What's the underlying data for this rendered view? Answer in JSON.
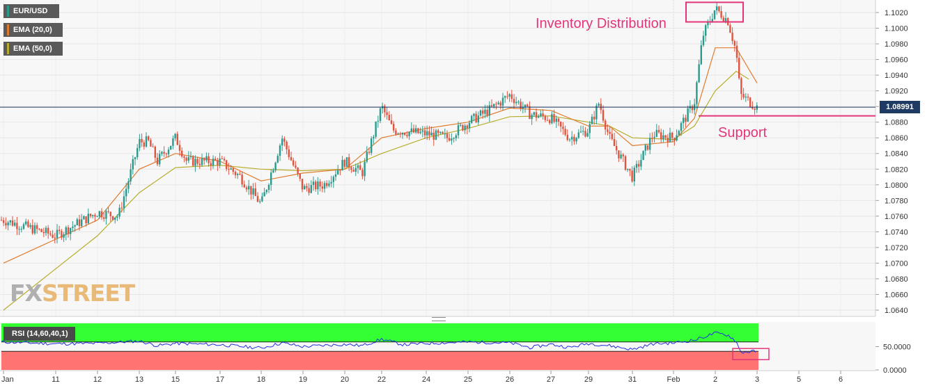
{
  "legend": {
    "pair": "EUR/USD",
    "ema20": "EMA (20,0)",
    "ema50": "EMA (50,0)"
  },
  "annotations": {
    "distribution": "Inventory Distribution",
    "support": "Support"
  },
  "watermark": {
    "fx": "FX",
    "street": "STREET"
  },
  "last_price": "1.08991",
  "rsi_label": "RSI (14,60,40,1)",
  "colors": {
    "up": "#2b9a8c",
    "down": "#e0533f",
    "ema20": "#e07b2e",
    "ema50": "#b8ad2c",
    "rsi_line": "#1f2fdc",
    "rsi_upper_zone": "#33ff33",
    "rsi_lower_zone": "#ff7373",
    "annotation": "#e5357a",
    "price_line": "#1f3a63"
  },
  "chart_data": [
    {
      "type": "candlestick",
      "title": "EUR/USD",
      "y_ticks": [
        "1.1020",
        "1.1000",
        "1.0980",
        "1.0960",
        "1.0940",
        "1.0920",
        "1.0900",
        "1.0880",
        "1.0860",
        "1.0840",
        "1.0820",
        "1.0800",
        "1.0780",
        "1.0760",
        "1.0740",
        "1.0720",
        "1.0700",
        "1.0680",
        "1.0660",
        "1.0640"
      ],
      "ylim": [
        1.063,
        1.1035
      ],
      "x_ticks": [
        "Jan",
        "11",
        "12",
        "13",
        "15",
        "17",
        "18",
        "19",
        "20",
        "22",
        "24",
        "25",
        "26",
        "27",
        "29",
        "31",
        "Feb",
        "2",
        "3",
        "5",
        "6"
      ],
      "last_price": 1.08991,
      "support_level": 1.0888,
      "distribution_zone": {
        "from": "2",
        "high": 1.1033,
        "low": 1.1008
      },
      "close_path": [
        {
          "x": "Jan",
          "y": 1.0755
        },
        {
          "x": "11",
          "y": 1.0735
        },
        {
          "x": "12",
          "y": 1.0765
        },
        {
          "x": "12.5",
          "y": 1.076
        },
        {
          "x": "13",
          "y": 1.0855
        },
        {
          "x": "13.5",
          "y": 1.0855
        },
        {
          "x": "14",
          "y": 1.083
        },
        {
          "x": "15",
          "y": 1.086
        },
        {
          "x": "15.5",
          "y": 1.083
        },
        {
          "x": "17",
          "y": 1.083
        },
        {
          "x": "17.5",
          "y": 1.081
        },
        {
          "x": "18",
          "y": 1.0775
        },
        {
          "x": "18.5",
          "y": 1.086
        },
        {
          "x": "19",
          "y": 1.0795
        },
        {
          "x": "19.5",
          "y": 1.08
        },
        {
          "x": "20",
          "y": 1.083
        },
        {
          "x": "21",
          "y": 1.0815
        },
        {
          "x": "22",
          "y": 1.09
        },
        {
          "x": "22.5",
          "y": 1.087
        },
        {
          "x": "24",
          "y": 1.0865
        },
        {
          "x": "24.5",
          "y": 1.086
        },
        {
          "x": "25",
          "y": 1.088
        },
        {
          "x": "25.5",
          "y": 1.0895
        },
        {
          "x": "26",
          "y": 1.0915
        },
        {
          "x": "26.5",
          "y": 1.089
        },
        {
          "x": "27",
          "y": 1.0885
        },
        {
          "x": "28",
          "y": 1.086
        },
        {
          "x": "29",
          "y": 1.087
        },
        {
          "x": "29.5",
          "y": 1.0905
        },
        {
          "x": "30",
          "y": 1.086
        },
        {
          "x": "31",
          "y": 1.081
        },
        {
          "x": "31.5",
          "y": 1.0865
        },
        {
          "x": "Feb",
          "y": 1.086
        },
        {
          "x": "1.5",
          "y": 1.0905
        },
        {
          "x": "1.7",
          "y": 1.099
        },
        {
          "x": "2",
          "y": 1.1025
        },
        {
          "x": "2.3",
          "y": 1.101
        },
        {
          "x": "2.5",
          "y": 1.097
        },
        {
          "x": "2.6",
          "y": 1.0915
        },
        {
          "x": "3",
          "y": 1.0899
        }
      ],
      "series": [
        {
          "name": "EMA (20,0)",
          "values": [
            {
              "x": "Jan",
              "y": 1.07
            },
            {
              "x": "12",
              "y": 1.0755
            },
            {
              "x": "13",
              "y": 1.082
            },
            {
              "x": "15",
              "y": 1.084
            },
            {
              "x": "17",
              "y": 1.083
            },
            {
              "x": "18",
              "y": 1.0805
            },
            {
              "x": "19",
              "y": 1.0815
            },
            {
              "x": "20",
              "y": 1.082
            },
            {
              "x": "22",
              "y": 1.086
            },
            {
              "x": "24",
              "y": 1.0872
            },
            {
              "x": "25",
              "y": 1.088
            },
            {
              "x": "26",
              "y": 1.0898
            },
            {
              "x": "27",
              "y": 1.0895
            },
            {
              "x": "29",
              "y": 1.0875
            },
            {
              "x": "30",
              "y": 1.0875
            },
            {
              "x": "31",
              "y": 1.085
            },
            {
              "x": "Feb",
              "y": 1.0855
            },
            {
              "x": "1.5",
              "y": 1.0885
            },
            {
              "x": "2",
              "y": 1.0975
            },
            {
              "x": "2.5",
              "y": 1.0975
            },
            {
              "x": "3",
              "y": 1.093
            }
          ]
        },
        {
          "name": "EMA (50,0)",
          "values": [
            {
              "x": "Jan",
              "y": 1.064
            },
            {
              "x": "12",
              "y": 1.0735
            },
            {
              "x": "13",
              "y": 1.079
            },
            {
              "x": "15",
              "y": 1.0822
            },
            {
              "x": "17",
              "y": 1.0825
            },
            {
              "x": "18",
              "y": 1.082
            },
            {
              "x": "19",
              "y": 1.0818
            },
            {
              "x": "20",
              "y": 1.082
            },
            {
              "x": "22",
              "y": 1.084
            },
            {
              "x": "24",
              "y": 1.086
            },
            {
              "x": "25",
              "y": 1.0872
            },
            {
              "x": "26",
              "y": 1.0887
            },
            {
              "x": "27",
              "y": 1.0888
            },
            {
              "x": "29",
              "y": 1.088
            },
            {
              "x": "30",
              "y": 1.0875
            },
            {
              "x": "31",
              "y": 1.086
            },
            {
              "x": "Feb",
              "y": 1.0858
            },
            {
              "x": "1.5",
              "y": 1.0875
            },
            {
              "x": "2",
              "y": 1.092
            },
            {
              "x": "2.5",
              "y": 1.0945
            },
            {
              "x": "2.8",
              "y": 1.0935
            }
          ]
        }
      ]
    },
    {
      "type": "line",
      "title": "RSI (14,60,40,1)",
      "y_ticks": [
        "50.0000",
        "0.0000"
      ],
      "ylim": [
        0,
        100
      ],
      "upper_band": 60,
      "lower_band": 40,
      "series": [
        {
          "name": "RSI (14,60,40,1)",
          "values": [
            {
              "x": "Jan",
              "y": 60
            },
            {
              "x": "11",
              "y": 56
            },
            {
              "x": "12",
              "y": 57
            },
            {
              "x": "13",
              "y": 62
            },
            {
              "x": "14",
              "y": 52
            },
            {
              "x": "15",
              "y": 57
            },
            {
              "x": "17",
              "y": 54
            },
            {
              "x": "18",
              "y": 47
            },
            {
              "x": "18.5",
              "y": 58
            },
            {
              "x": "19",
              "y": 50
            },
            {
              "x": "20",
              "y": 55
            },
            {
              "x": "21",
              "y": 52
            },
            {
              "x": "22",
              "y": 66
            },
            {
              "x": "23",
              "y": 54
            },
            {
              "x": "24",
              "y": 57
            },
            {
              "x": "25",
              "y": 60
            },
            {
              "x": "26",
              "y": 58
            },
            {
              "x": "26.5",
              "y": 48
            },
            {
              "x": "27",
              "y": 55
            },
            {
              "x": "28",
              "y": 48
            },
            {
              "x": "29",
              "y": 57
            },
            {
              "x": "30",
              "y": 52
            },
            {
              "x": "31",
              "y": 44
            },
            {
              "x": "31.5",
              "y": 56
            },
            {
              "x": "Feb",
              "y": 58
            },
            {
              "x": "1.5",
              "y": 64
            },
            {
              "x": "2",
              "y": 79
            },
            {
              "x": "2.3",
              "y": 75
            },
            {
              "x": "2.5",
              "y": 62
            },
            {
              "x": "2.6",
              "y": 38
            },
            {
              "x": "3",
              "y": 40
            }
          ]
        }
      ]
    }
  ]
}
